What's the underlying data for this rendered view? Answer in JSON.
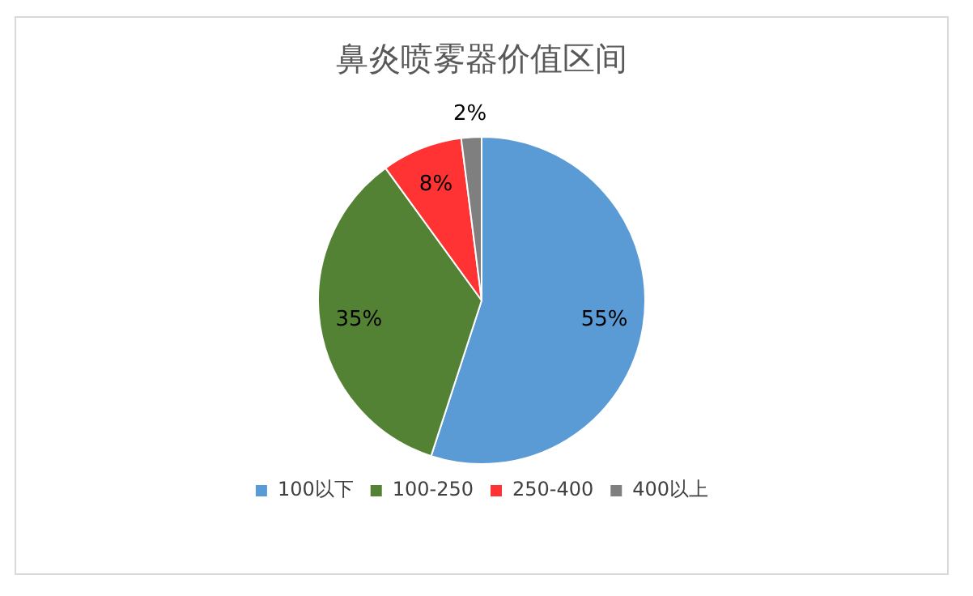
{
  "chart_data": {
    "type": "pie",
    "title": "鼻炎喷雾器价值区间",
    "categories": [
      "100以下",
      "100-250",
      "250-400",
      "400以上"
    ],
    "values": [
      55,
      35,
      8,
      2
    ],
    "colors": [
      "#5b9bd5",
      "#548235",
      "#ff3333",
      "#7f7f7f"
    ],
    "value_labels": [
      "55%",
      "35%",
      "8%",
      "2%"
    ],
    "legend": "bottom"
  }
}
